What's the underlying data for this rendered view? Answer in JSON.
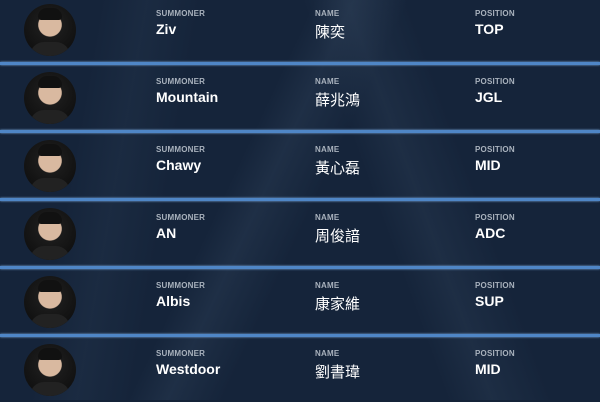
{
  "labels": {
    "summoner": "SUMMONER",
    "name": "NAME",
    "position": "POSITION"
  },
  "accent": "#4f86c6",
  "players": [
    {
      "summoner": "Ziv",
      "name": "陳奕",
      "position": "TOP"
    },
    {
      "summoner": "Mountain",
      "name": "薛兆鴻",
      "position": "JGL"
    },
    {
      "summoner": "Chawy",
      "name": "黃心磊",
      "position": "MID"
    },
    {
      "summoner": "AN",
      "name": "周俊諳",
      "position": "ADC"
    },
    {
      "summoner": "Albis",
      "name": "康家維",
      "position": "SUP"
    },
    {
      "summoner": "Westdoor",
      "name": "劉書瑋",
      "position": "MID"
    }
  ]
}
